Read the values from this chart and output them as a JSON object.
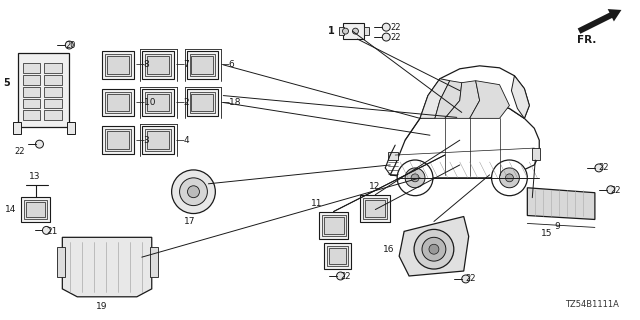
{
  "bg_color": "#ffffff",
  "lc": "#1a1a1a",
  "diagram_id": "TZ54B1111A",
  "fig_w": 6.4,
  "fig_h": 3.2,
  "dpi": 100
}
